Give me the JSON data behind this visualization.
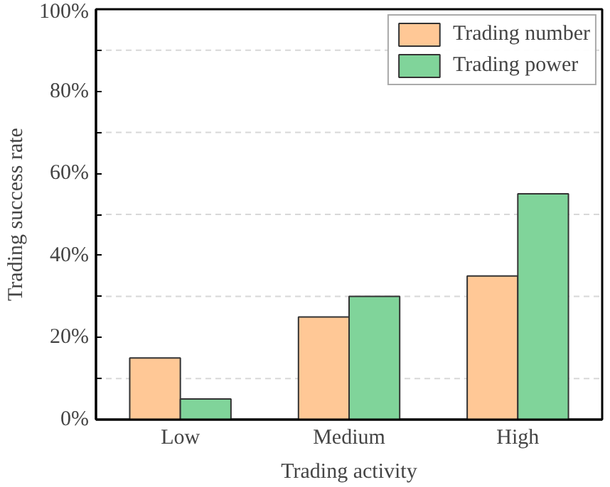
{
  "chart_data": {
    "type": "bar",
    "xlabel": "Trading activity",
    "ylabel": "Trading success rate",
    "categories": [
      "Low",
      "Medium",
      "High"
    ],
    "series": [
      {
        "name": "Trading number",
        "color": "#ffc896",
        "values": [
          15,
          25,
          35
        ]
      },
      {
        "name": "Trading power",
        "color": "#80d49a",
        "values": [
          5,
          30,
          55
        ]
      }
    ],
    "ylim": [
      0,
      100
    ],
    "yticks": [
      {
        "value": 0,
        "label": "0%"
      },
      {
        "value": 10,
        "label": null
      },
      {
        "value": 20,
        "label": "20%"
      },
      {
        "value": 30,
        "label": null
      },
      {
        "value": 40,
        "label": "40%"
      },
      {
        "value": 50,
        "label": null
      },
      {
        "value": 60,
        "label": "60%"
      },
      {
        "value": 70,
        "label": null
      },
      {
        "value": 80,
        "label": "80%"
      },
      {
        "value": 90,
        "label": null
      },
      {
        "value": 100,
        "label": "100%"
      }
    ],
    "grid": "y",
    "legend": "top right"
  }
}
